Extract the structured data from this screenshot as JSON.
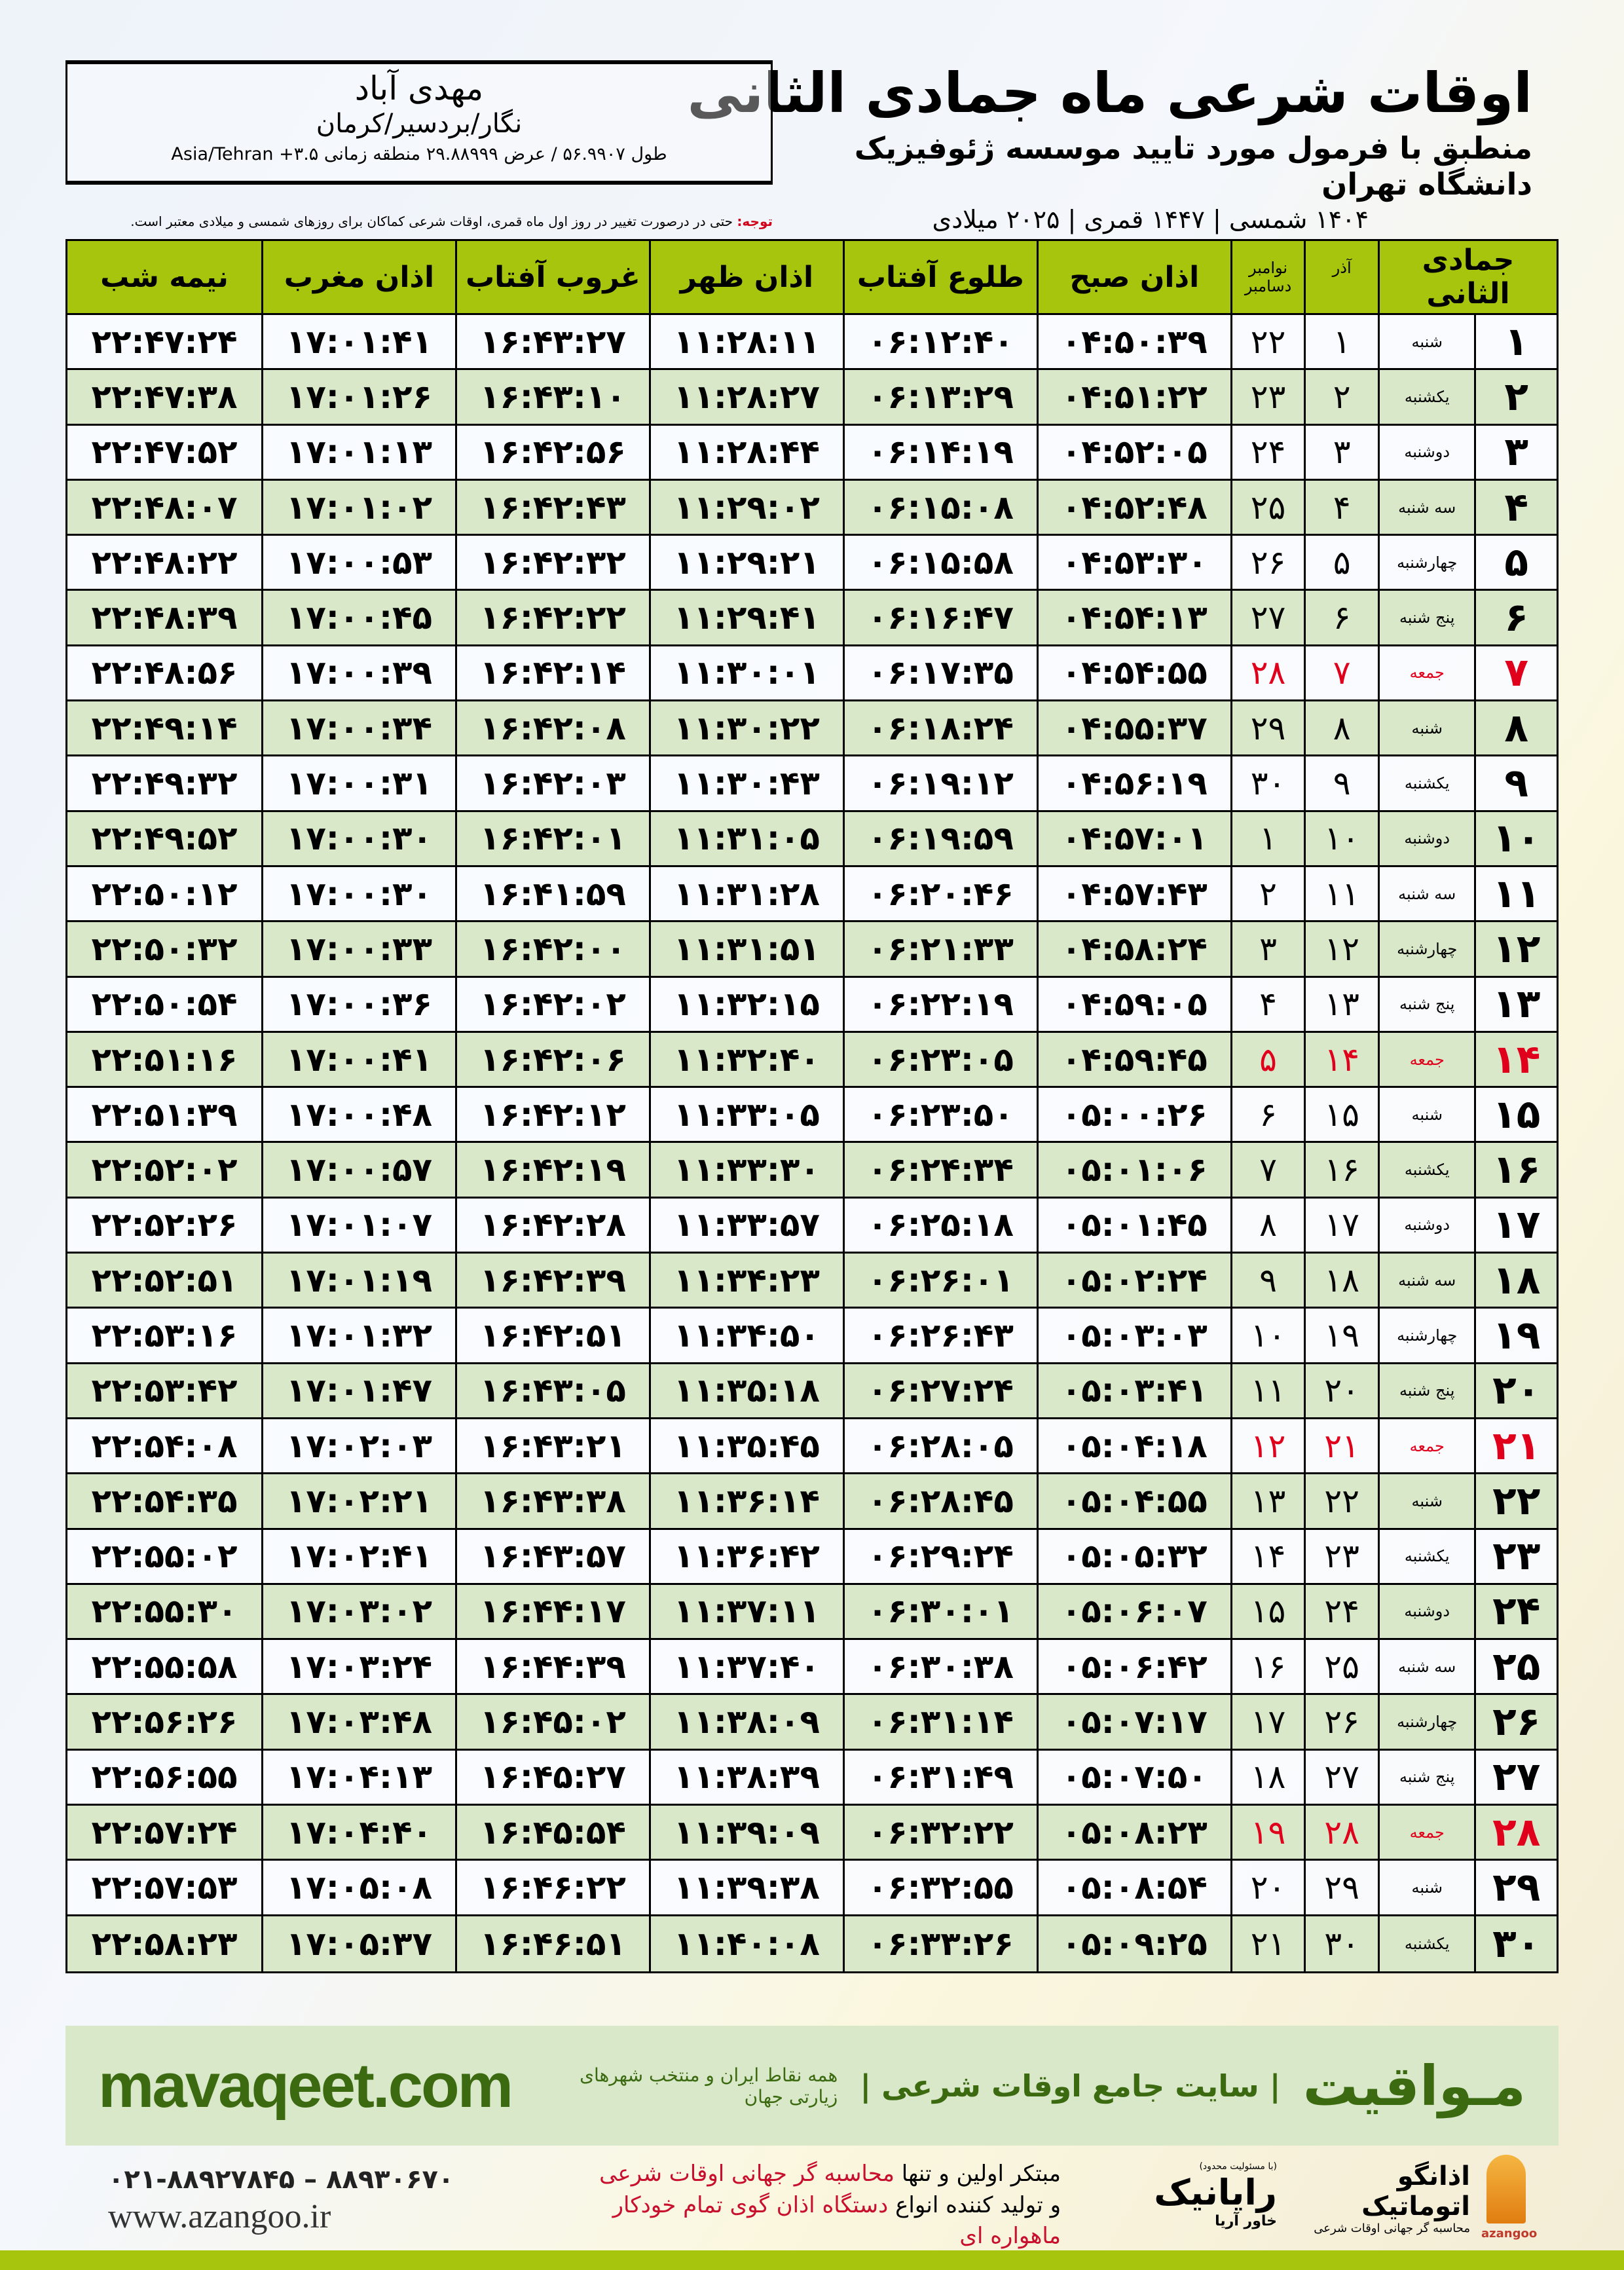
{
  "header": {
    "title": "اوقات شرعی ماه جمادی الثانی",
    "subtitle": "منطبق با فرمول مورد تایید موسسه ژئوفیزیک دانشگاه تهران",
    "years": "۱۴۰۴ شمسی | ۱۴۴۷ قمری | ۲۰۲۵ میلادی"
  },
  "location": {
    "name": "مهدی آباد",
    "path": "نگار/بردسیر/کرمان",
    "coords": "طول ۵۶.۹۹۰۷ / عرض ۲۹.۸۸۹۹۹ منطقه زمانی ۳.۵+ Asia/Tehran"
  },
  "note": {
    "label": "توجه:",
    "text": " حتی در درصورت تغییر در روز اول ماه قمری، اوقات شرعی کماکان برای روزهای شمسی و میلادی معتبر است."
  },
  "colors": {
    "header_green": "#a6c50c",
    "row_green": "#d9e8c9",
    "holiday_red": "#e0001b",
    "brand_green": "#3b6a10"
  },
  "table": {
    "headers": {
      "hijri": "جمادی الثانی",
      "shamsi": "آذر",
      "greg_1": "نوامبر",
      "greg_2": "دسامبر",
      "fajr": "اذان صبح",
      "sunrise": "طلوع آفتاب",
      "dhuhr": "اذان ظهر",
      "sunset": "غروب آفتاب",
      "maghrib": "اذان مغرب",
      "midnight": "نیمه شب"
    },
    "rows": [
      {
        "hijri": "۱",
        "weekday": "شنبه",
        "shamsi": "۱",
        "greg": "۲۲",
        "fajr": "۰۴:۵۰:۳۹",
        "sunrise": "۰۶:۱۲:۴۰",
        "dhuhr": "۱۱:۲۸:۱۱",
        "sunset": "۱۶:۴۳:۲۷",
        "maghrib": "۱۷:۰۱:۴۱",
        "midnight": "۲۲:۴۷:۲۴",
        "holiday": false
      },
      {
        "hijri": "۲",
        "weekday": "یکشنبه",
        "shamsi": "۲",
        "greg": "۲۳",
        "fajr": "۰۴:۵۱:۲۲",
        "sunrise": "۰۶:۱۳:۲۹",
        "dhuhr": "۱۱:۲۸:۲۷",
        "sunset": "۱۶:۴۳:۱۰",
        "maghrib": "۱۷:۰۱:۲۶",
        "midnight": "۲۲:۴۷:۳۸",
        "holiday": false
      },
      {
        "hijri": "۳",
        "weekday": "دوشنبه",
        "shamsi": "۳",
        "greg": "۲۴",
        "fajr": "۰۴:۵۲:۰۵",
        "sunrise": "۰۶:۱۴:۱۹",
        "dhuhr": "۱۱:۲۸:۴۴",
        "sunset": "۱۶:۴۲:۵۶",
        "maghrib": "۱۷:۰۱:۱۳",
        "midnight": "۲۲:۴۷:۵۲",
        "holiday": false
      },
      {
        "hijri": "۴",
        "weekday": "سه شنبه",
        "shamsi": "۴",
        "greg": "۲۵",
        "fajr": "۰۴:۵۲:۴۸",
        "sunrise": "۰۶:۱۵:۰۸",
        "dhuhr": "۱۱:۲۹:۰۲",
        "sunset": "۱۶:۴۲:۴۳",
        "maghrib": "۱۷:۰۱:۰۲",
        "midnight": "۲۲:۴۸:۰۷",
        "holiday": false
      },
      {
        "hijri": "۵",
        "weekday": "چهارشنبه",
        "shamsi": "۵",
        "greg": "۲۶",
        "fajr": "۰۴:۵۳:۳۰",
        "sunrise": "۰۶:۱۵:۵۸",
        "dhuhr": "۱۱:۲۹:۲۱",
        "sunset": "۱۶:۴۲:۳۲",
        "maghrib": "۱۷:۰۰:۵۳",
        "midnight": "۲۲:۴۸:۲۲",
        "holiday": false
      },
      {
        "hijri": "۶",
        "weekday": "پنج شنبه",
        "shamsi": "۶",
        "greg": "۲۷",
        "fajr": "۰۴:۵۴:۱۳",
        "sunrise": "۰۶:۱۶:۴۷",
        "dhuhr": "۱۱:۲۹:۴۱",
        "sunset": "۱۶:۴۲:۲۲",
        "maghrib": "۱۷:۰۰:۴۵",
        "midnight": "۲۲:۴۸:۳۹",
        "holiday": false
      },
      {
        "hijri": "۷",
        "weekday": "جمعه",
        "shamsi": "۷",
        "greg": "۲۸",
        "fajr": "۰۴:۵۴:۵۵",
        "sunrise": "۰۶:۱۷:۳۵",
        "dhuhr": "۱۱:۳۰:۰۱",
        "sunset": "۱۶:۴۲:۱۴",
        "maghrib": "۱۷:۰۰:۳۹",
        "midnight": "۲۲:۴۸:۵۶",
        "holiday": true
      },
      {
        "hijri": "۸",
        "weekday": "شنبه",
        "shamsi": "۸",
        "greg": "۲۹",
        "fajr": "۰۴:۵۵:۳۷",
        "sunrise": "۰۶:۱۸:۲۴",
        "dhuhr": "۱۱:۳۰:۲۲",
        "sunset": "۱۶:۴۲:۰۸",
        "maghrib": "۱۷:۰۰:۳۴",
        "midnight": "۲۲:۴۹:۱۴",
        "holiday": false
      },
      {
        "hijri": "۹",
        "weekday": "یکشنبه",
        "shamsi": "۹",
        "greg": "۳۰",
        "fajr": "۰۴:۵۶:۱۹",
        "sunrise": "۰۶:۱۹:۱۲",
        "dhuhr": "۱۱:۳۰:۴۳",
        "sunset": "۱۶:۴۲:۰۳",
        "maghrib": "۱۷:۰۰:۳۱",
        "midnight": "۲۲:۴۹:۳۲",
        "holiday": false
      },
      {
        "hijri": "۱۰",
        "weekday": "دوشنبه",
        "shamsi": "۱۰",
        "greg": "۱",
        "fajr": "۰۴:۵۷:۰۱",
        "sunrise": "۰۶:۱۹:۵۹",
        "dhuhr": "۱۱:۳۱:۰۵",
        "sunset": "۱۶:۴۲:۰۱",
        "maghrib": "۱۷:۰۰:۳۰",
        "midnight": "۲۲:۴۹:۵۲",
        "holiday": false
      },
      {
        "hijri": "۱۱",
        "weekday": "سه شنبه",
        "shamsi": "۱۱",
        "greg": "۲",
        "fajr": "۰۴:۵۷:۴۳",
        "sunrise": "۰۶:۲۰:۴۶",
        "dhuhr": "۱۱:۳۱:۲۸",
        "sunset": "۱۶:۴۱:۵۹",
        "maghrib": "۱۷:۰۰:۳۰",
        "midnight": "۲۲:۵۰:۱۲",
        "holiday": false
      },
      {
        "hijri": "۱۲",
        "weekday": "چهارشنبه",
        "shamsi": "۱۲",
        "greg": "۳",
        "fajr": "۰۴:۵۸:۲۴",
        "sunrise": "۰۶:۲۱:۳۳",
        "dhuhr": "۱۱:۳۱:۵۱",
        "sunset": "۱۶:۴۲:۰۰",
        "maghrib": "۱۷:۰۰:۳۳",
        "midnight": "۲۲:۵۰:۳۲",
        "holiday": false
      },
      {
        "hijri": "۱۳",
        "weekday": "پنج شنبه",
        "shamsi": "۱۳",
        "greg": "۴",
        "fajr": "۰۴:۵۹:۰۵",
        "sunrise": "۰۶:۲۲:۱۹",
        "dhuhr": "۱۱:۳۲:۱۵",
        "sunset": "۱۶:۴۲:۰۲",
        "maghrib": "۱۷:۰۰:۳۶",
        "midnight": "۲۲:۵۰:۵۴",
        "holiday": false
      },
      {
        "hijri": "۱۴",
        "weekday": "جمعه",
        "shamsi": "۱۴",
        "greg": "۵",
        "fajr": "۰۴:۵۹:۴۵",
        "sunrise": "۰۶:۲۳:۰۵",
        "dhuhr": "۱۱:۳۲:۴۰",
        "sunset": "۱۶:۴۲:۰۶",
        "maghrib": "۱۷:۰۰:۴۱",
        "midnight": "۲۲:۵۱:۱۶",
        "holiday": true
      },
      {
        "hijri": "۱۵",
        "weekday": "شنبه",
        "shamsi": "۱۵",
        "greg": "۶",
        "fajr": "۰۵:۰۰:۲۶",
        "sunrise": "۰۶:۲۳:۵۰",
        "dhuhr": "۱۱:۳۳:۰۵",
        "sunset": "۱۶:۴۲:۱۲",
        "maghrib": "۱۷:۰۰:۴۸",
        "midnight": "۲۲:۵۱:۳۹",
        "holiday": false
      },
      {
        "hijri": "۱۶",
        "weekday": "یکشنبه",
        "shamsi": "۱۶",
        "greg": "۷",
        "fajr": "۰۵:۰۱:۰۶",
        "sunrise": "۰۶:۲۴:۳۴",
        "dhuhr": "۱۱:۳۳:۳۰",
        "sunset": "۱۶:۴۲:۱۹",
        "maghrib": "۱۷:۰۰:۵۷",
        "midnight": "۲۲:۵۲:۰۲",
        "holiday": false
      },
      {
        "hijri": "۱۷",
        "weekday": "دوشنبه",
        "shamsi": "۱۷",
        "greg": "۸",
        "fajr": "۰۵:۰۱:۴۵",
        "sunrise": "۰۶:۲۵:۱۸",
        "dhuhr": "۱۱:۳۳:۵۷",
        "sunset": "۱۶:۴۲:۲۸",
        "maghrib": "۱۷:۰۱:۰۷",
        "midnight": "۲۲:۵۲:۲۶",
        "holiday": false
      },
      {
        "hijri": "۱۸",
        "weekday": "سه شنبه",
        "shamsi": "۱۸",
        "greg": "۹",
        "fajr": "۰۵:۰۲:۲۴",
        "sunrise": "۰۶:۲۶:۰۱",
        "dhuhr": "۱۱:۳۴:۲۳",
        "sunset": "۱۶:۴۲:۳۹",
        "maghrib": "۱۷:۰۱:۱۹",
        "midnight": "۲۲:۵۲:۵۱",
        "holiday": false
      },
      {
        "hijri": "۱۹",
        "weekday": "چهارشنبه",
        "shamsi": "۱۹",
        "greg": "۱۰",
        "fajr": "۰۵:۰۳:۰۳",
        "sunrise": "۰۶:۲۶:۴۳",
        "dhuhr": "۱۱:۳۴:۵۰",
        "sunset": "۱۶:۴۲:۵۱",
        "maghrib": "۱۷:۰۱:۳۲",
        "midnight": "۲۲:۵۳:۱۶",
        "holiday": false
      },
      {
        "hijri": "۲۰",
        "weekday": "پنج شنبه",
        "shamsi": "۲۰",
        "greg": "۱۱",
        "fajr": "۰۵:۰۳:۴۱",
        "sunrise": "۰۶:۲۷:۲۴",
        "dhuhr": "۱۱:۳۵:۱۸",
        "sunset": "۱۶:۴۳:۰۵",
        "maghrib": "۱۷:۰۱:۴۷",
        "midnight": "۲۲:۵۳:۴۲",
        "holiday": false
      },
      {
        "hijri": "۲۱",
        "weekday": "جمعه",
        "shamsi": "۲۱",
        "greg": "۱۲",
        "fajr": "۰۵:۰۴:۱۸",
        "sunrise": "۰۶:۲۸:۰۵",
        "dhuhr": "۱۱:۳۵:۴۵",
        "sunset": "۱۶:۴۳:۲۱",
        "maghrib": "۱۷:۰۲:۰۳",
        "midnight": "۲۲:۵۴:۰۸",
        "holiday": true
      },
      {
        "hijri": "۲۲",
        "weekday": "شنبه",
        "shamsi": "۲۲",
        "greg": "۱۳",
        "fajr": "۰۵:۰۴:۵۵",
        "sunrise": "۰۶:۲۸:۴۵",
        "dhuhr": "۱۱:۳۶:۱۴",
        "sunset": "۱۶:۴۳:۳۸",
        "maghrib": "۱۷:۰۲:۲۱",
        "midnight": "۲۲:۵۴:۳۵",
        "holiday": false
      },
      {
        "hijri": "۲۳",
        "weekday": "یکشنبه",
        "shamsi": "۲۳",
        "greg": "۱۴",
        "fajr": "۰۵:۰۵:۳۲",
        "sunrise": "۰۶:۲۹:۲۴",
        "dhuhr": "۱۱:۳۶:۴۲",
        "sunset": "۱۶:۴۳:۵۷",
        "maghrib": "۱۷:۰۲:۴۱",
        "midnight": "۲۲:۵۵:۰۲",
        "holiday": false
      },
      {
        "hijri": "۲۴",
        "weekday": "دوشنبه",
        "shamsi": "۲۴",
        "greg": "۱۵",
        "fajr": "۰۵:۰۶:۰۷",
        "sunrise": "۰۶:۳۰:۰۱",
        "dhuhr": "۱۱:۳۷:۱۱",
        "sunset": "۱۶:۴۴:۱۷",
        "maghrib": "۱۷:۰۳:۰۲",
        "midnight": "۲۲:۵۵:۳۰",
        "holiday": false
      },
      {
        "hijri": "۲۵",
        "weekday": "سه شنبه",
        "shamsi": "۲۵",
        "greg": "۱۶",
        "fajr": "۰۵:۰۶:۴۲",
        "sunrise": "۰۶:۳۰:۳۸",
        "dhuhr": "۱۱:۳۷:۴۰",
        "sunset": "۱۶:۴۴:۳۹",
        "maghrib": "۱۷:۰۳:۲۴",
        "midnight": "۲۲:۵۵:۵۸",
        "holiday": false
      },
      {
        "hijri": "۲۶",
        "weekday": "چهارشنبه",
        "shamsi": "۲۶",
        "greg": "۱۷",
        "fajr": "۰۵:۰۷:۱۷",
        "sunrise": "۰۶:۳۱:۱۴",
        "dhuhr": "۱۱:۳۸:۰۹",
        "sunset": "۱۶:۴۵:۰۲",
        "maghrib": "۱۷:۰۳:۴۸",
        "midnight": "۲۲:۵۶:۲۶",
        "holiday": false
      },
      {
        "hijri": "۲۷",
        "weekday": "پنج شنبه",
        "shamsi": "۲۷",
        "greg": "۱۸",
        "fajr": "۰۵:۰۷:۵۰",
        "sunrise": "۰۶:۳۱:۴۹",
        "dhuhr": "۱۱:۳۸:۳۹",
        "sunset": "۱۶:۴۵:۲۷",
        "maghrib": "۱۷:۰۴:۱۳",
        "midnight": "۲۲:۵۶:۵۵",
        "holiday": false
      },
      {
        "hijri": "۲۸",
        "weekday": "جمعه",
        "shamsi": "۲۸",
        "greg": "۱۹",
        "fajr": "۰۵:۰۸:۲۳",
        "sunrise": "۰۶:۳۲:۲۲",
        "dhuhr": "۱۱:۳۹:۰۹",
        "sunset": "۱۶:۴۵:۵۴",
        "maghrib": "۱۷:۰۴:۴۰",
        "midnight": "۲۲:۵۷:۲۴",
        "holiday": true
      },
      {
        "hijri": "۲۹",
        "weekday": "شنبه",
        "shamsi": "۲۹",
        "greg": "۲۰",
        "fajr": "۰۵:۰۸:۵۴",
        "sunrise": "۰۶:۳۲:۵۵",
        "dhuhr": "۱۱:۳۹:۳۸",
        "sunset": "۱۶:۴۶:۲۲",
        "maghrib": "۱۷:۰۵:۰۸",
        "midnight": "۲۲:۵۷:۵۳",
        "holiday": false
      },
      {
        "hijri": "۳۰",
        "weekday": "یکشنبه",
        "shamsi": "۳۰",
        "greg": "۲۱",
        "fajr": "۰۵:۰۹:۲۵",
        "sunrise": "۰۶:۳۳:۲۶",
        "dhuhr": "۱۱:۴۰:۰۸",
        "sunset": "۱۶:۴۶:۵۱",
        "maghrib": "۱۷:۰۵:۳۷",
        "midnight": "۲۲:۵۸:۲۳",
        "holiday": false
      }
    ]
  },
  "banner": {
    "brand": "مـواقیت",
    "description": "| سایت جامع اوقات شرعی |",
    "sub": "همه نقاط ایران و منتخب شهرهای زیارتی جهان",
    "site": "mavaqeet.com"
  },
  "footer": {
    "phone": "۰۲۱-۸۸۹۲۷۸۴۵ – ۸۸۹۳۰۶۷۰",
    "website": "www.azangoo.ir",
    "promo_1a": "مبتکر اولین و تنها ",
    "promo_1b": "محاسبه گر جهانی اوقات شرعی",
    "promo_2a": "و تولید کننده انواع ",
    "promo_2b": "دستگاه اذان گوی تمام خودکار ماهواره ای",
    "raynik": "رایانیک",
    "raynik_small": "خاور آریا",
    "raynik_note": "(با مسئولیت محدود)",
    "azangoo": "اذانگو اتوماتیک",
    "azangoo_sub": "محاسبه گر جهانی اوقات شرعی",
    "azangoo_latin": "azangoo"
  }
}
